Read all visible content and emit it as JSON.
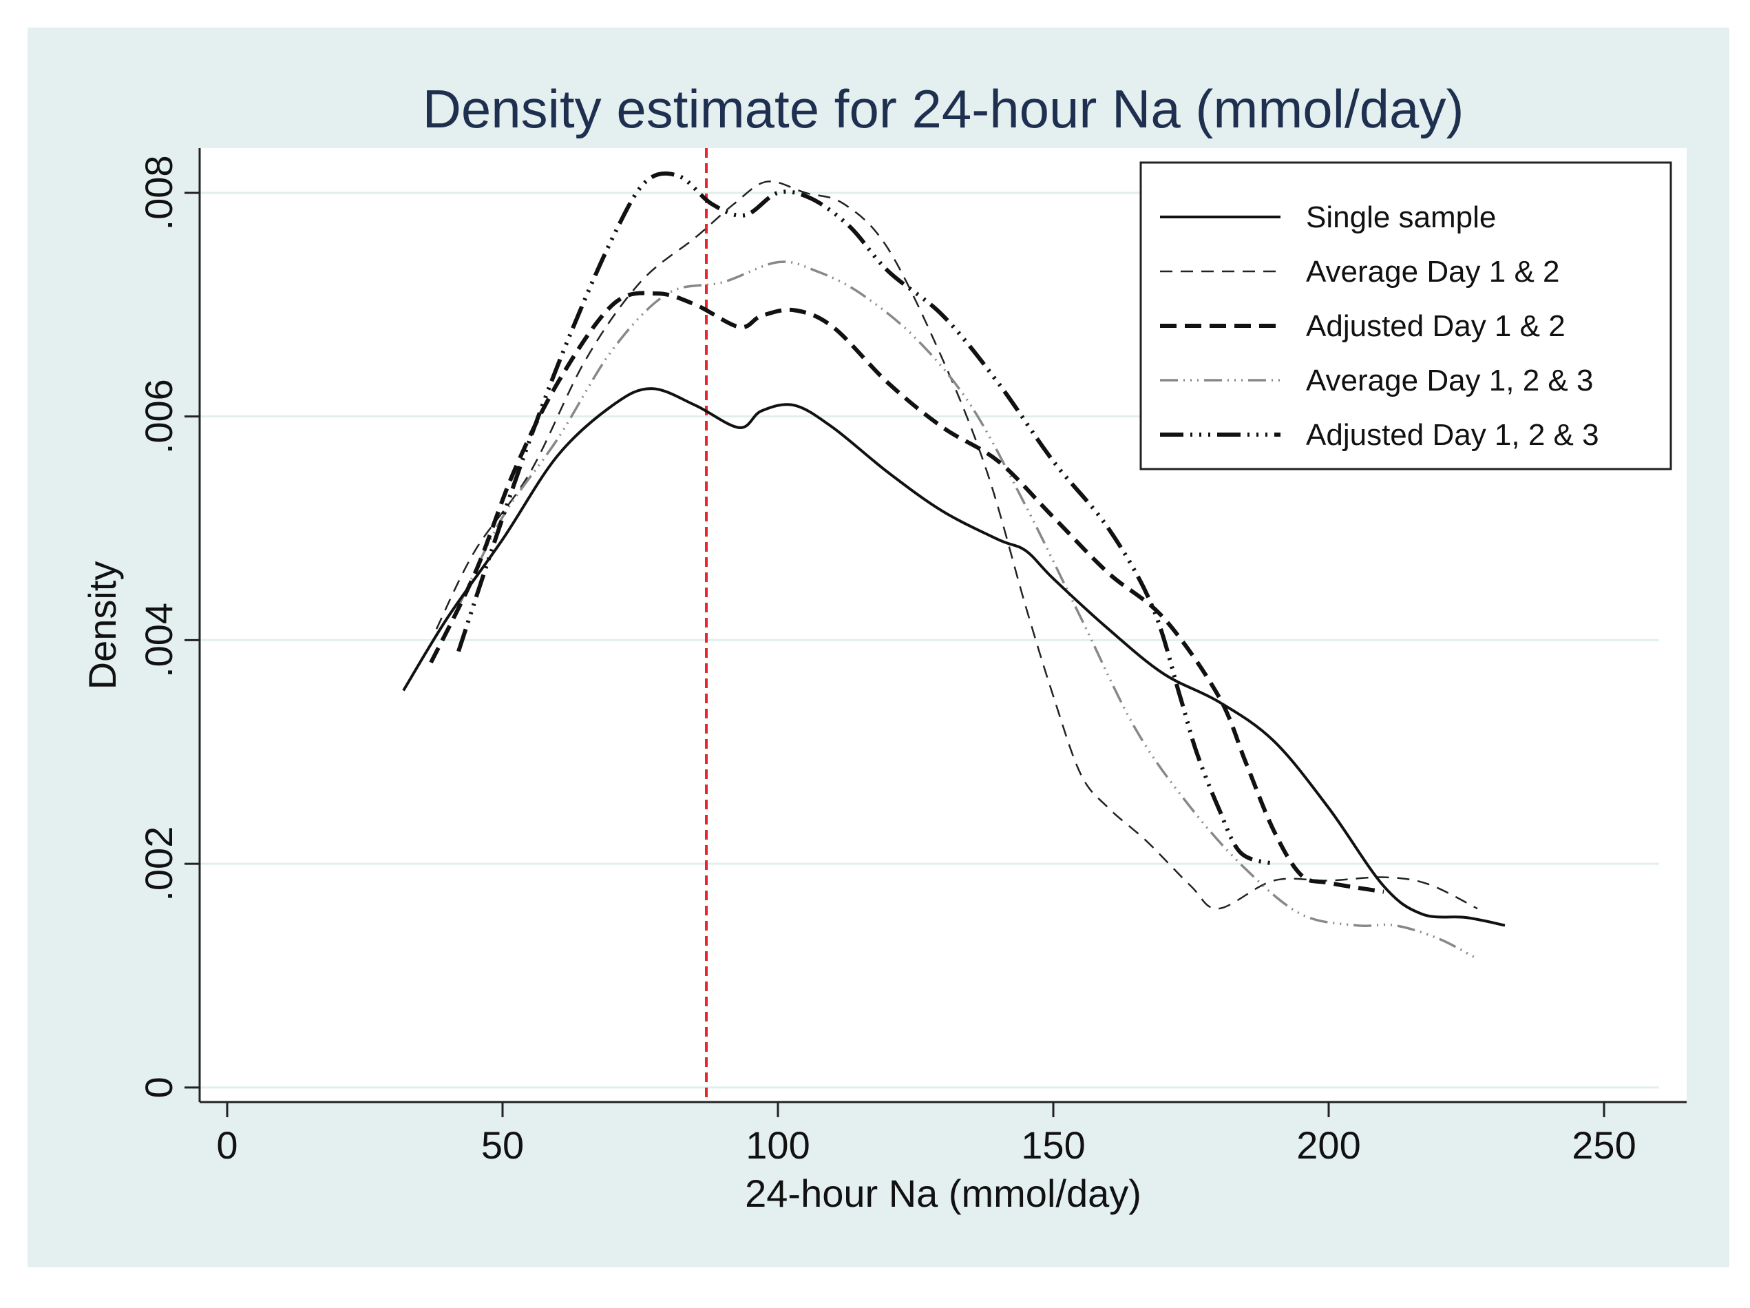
{
  "chart_data": {
    "type": "line",
    "title": "Density estimate for 24-hour Na (mmol/day)",
    "xlabel": "24-hour Na (mmol/day)",
    "ylabel": "Density",
    "xlim": [
      -5,
      265
    ],
    "ylim": [
      -0.00013,
      0.0084
    ],
    "x_ticks": [
      {
        "value": 0,
        "label": "0"
      },
      {
        "value": 50,
        "label": "50"
      },
      {
        "value": 100,
        "label": "100"
      },
      {
        "value": 150,
        "label": "150"
      },
      {
        "value": 200,
        "label": "200"
      },
      {
        "value": 250,
        "label": "250"
      }
    ],
    "y_ticks": [
      {
        "value": 0,
        "label": "0"
      },
      {
        "value": 0.002,
        "label": ".002"
      },
      {
        "value": 0.004,
        "label": ".004"
      },
      {
        "value": 0.006,
        "label": ".006"
      },
      {
        "value": 0.008,
        "label": ".008"
      }
    ],
    "grid": true,
    "legend_position": "top-right",
    "reference_line": {
      "x": 87,
      "color": "#e8262b",
      "style": "dashed"
    },
    "series": [
      {
        "name": "Single sample",
        "color": "#111111",
        "dash": "none",
        "width": 4,
        "x": [
          32,
          40,
          50,
          60,
          70,
          77,
          85,
          93,
          97,
          103,
          110,
          120,
          130,
          140,
          145,
          150,
          160,
          170,
          180,
          190,
          200,
          210,
          217,
          225,
          232
        ],
        "y": [
          0.00355,
          0.0042,
          0.0049,
          0.00565,
          0.0061,
          0.00625,
          0.0061,
          0.0059,
          0.00605,
          0.0061,
          0.0059,
          0.0055,
          0.00515,
          0.0049,
          0.0048,
          0.00455,
          0.0041,
          0.0037,
          0.00345,
          0.0031,
          0.0025,
          0.0018,
          0.00155,
          0.00152,
          0.00145
        ]
      },
      {
        "name": "Average Day 1 & 2",
        "color": "#222222",
        "dash": "18,12",
        "width": 2.5,
        "x": [
          38,
          45,
          55,
          65,
          75,
          85,
          92,
          98,
          105,
          112,
          120,
          130,
          138,
          145,
          150,
          155,
          160,
          167,
          175,
          180,
          190,
          200,
          210,
          218,
          227
        ],
        "y": [
          0.0041,
          0.0048,
          0.0055,
          0.0065,
          0.0072,
          0.0076,
          0.0079,
          0.0081,
          0.008,
          0.0079,
          0.0075,
          0.0065,
          0.0055,
          0.0043,
          0.0035,
          0.0028,
          0.0025,
          0.0022,
          0.0018,
          0.0016,
          0.00185,
          0.00185,
          0.00188,
          0.00182,
          0.0016
        ]
      },
      {
        "name": "Adjusted Day 1 & 2",
        "color": "#111111",
        "dash": "24,12",
        "width": 6,
        "x": [
          37,
          45,
          52,
          60,
          70,
          78,
          85,
          93,
          97,
          103,
          110,
          120,
          130,
          140,
          150,
          160,
          170,
          180,
          185,
          190,
          195,
          200,
          210
        ],
        "y": [
          0.0038,
          0.0046,
          0.0055,
          0.0063,
          0.007,
          0.0071,
          0.007,
          0.0068,
          0.0069,
          0.00695,
          0.0068,
          0.0063,
          0.0059,
          0.0056,
          0.0051,
          0.0046,
          0.0042,
          0.0035,
          0.0029,
          0.0023,
          0.0019,
          0.00183,
          0.00175
        ]
      },
      {
        "name": "Average Day 1, 2 & 3",
        "color": "#888888",
        "dash": "26,8,2,8,2,8,2,8",
        "width": 3.5,
        "x": [
          42,
          50,
          60,
          70,
          80,
          90,
          100,
          107,
          115,
          125,
          135,
          145,
          155,
          165,
          175,
          185,
          195,
          205,
          212,
          220,
          227
        ],
        "y": [
          0.0043,
          0.0051,
          0.0058,
          0.0066,
          0.0071,
          0.0072,
          0.00738,
          0.0073,
          0.0071,
          0.0067,
          0.0061,
          0.0052,
          0.0042,
          0.0032,
          0.0025,
          0.00195,
          0.00155,
          0.00145,
          0.00145,
          0.00133,
          0.00115
        ]
      },
      {
        "name": "Adjusted Day 1, 2 & 3",
        "color": "#111111",
        "dash": "34,10,3,10,3,10,3,10",
        "width": 6,
        "x": [
          42,
          48,
          55,
          62,
          70,
          76,
          82,
          88,
          94,
          100,
          106,
          113,
          120,
          130,
          140,
          150,
          160,
          168,
          173,
          176,
          180,
          184,
          190
        ],
        "y": [
          0.0039,
          0.0048,
          0.0058,
          0.0067,
          0.0076,
          0.0081,
          0.00815,
          0.0079,
          0.0078,
          0.008,
          0.00795,
          0.0077,
          0.0073,
          0.0069,
          0.0063,
          0.0056,
          0.005,
          0.0043,
          0.0035,
          0.003,
          0.0025,
          0.0021,
          0.002
        ]
      }
    ]
  }
}
